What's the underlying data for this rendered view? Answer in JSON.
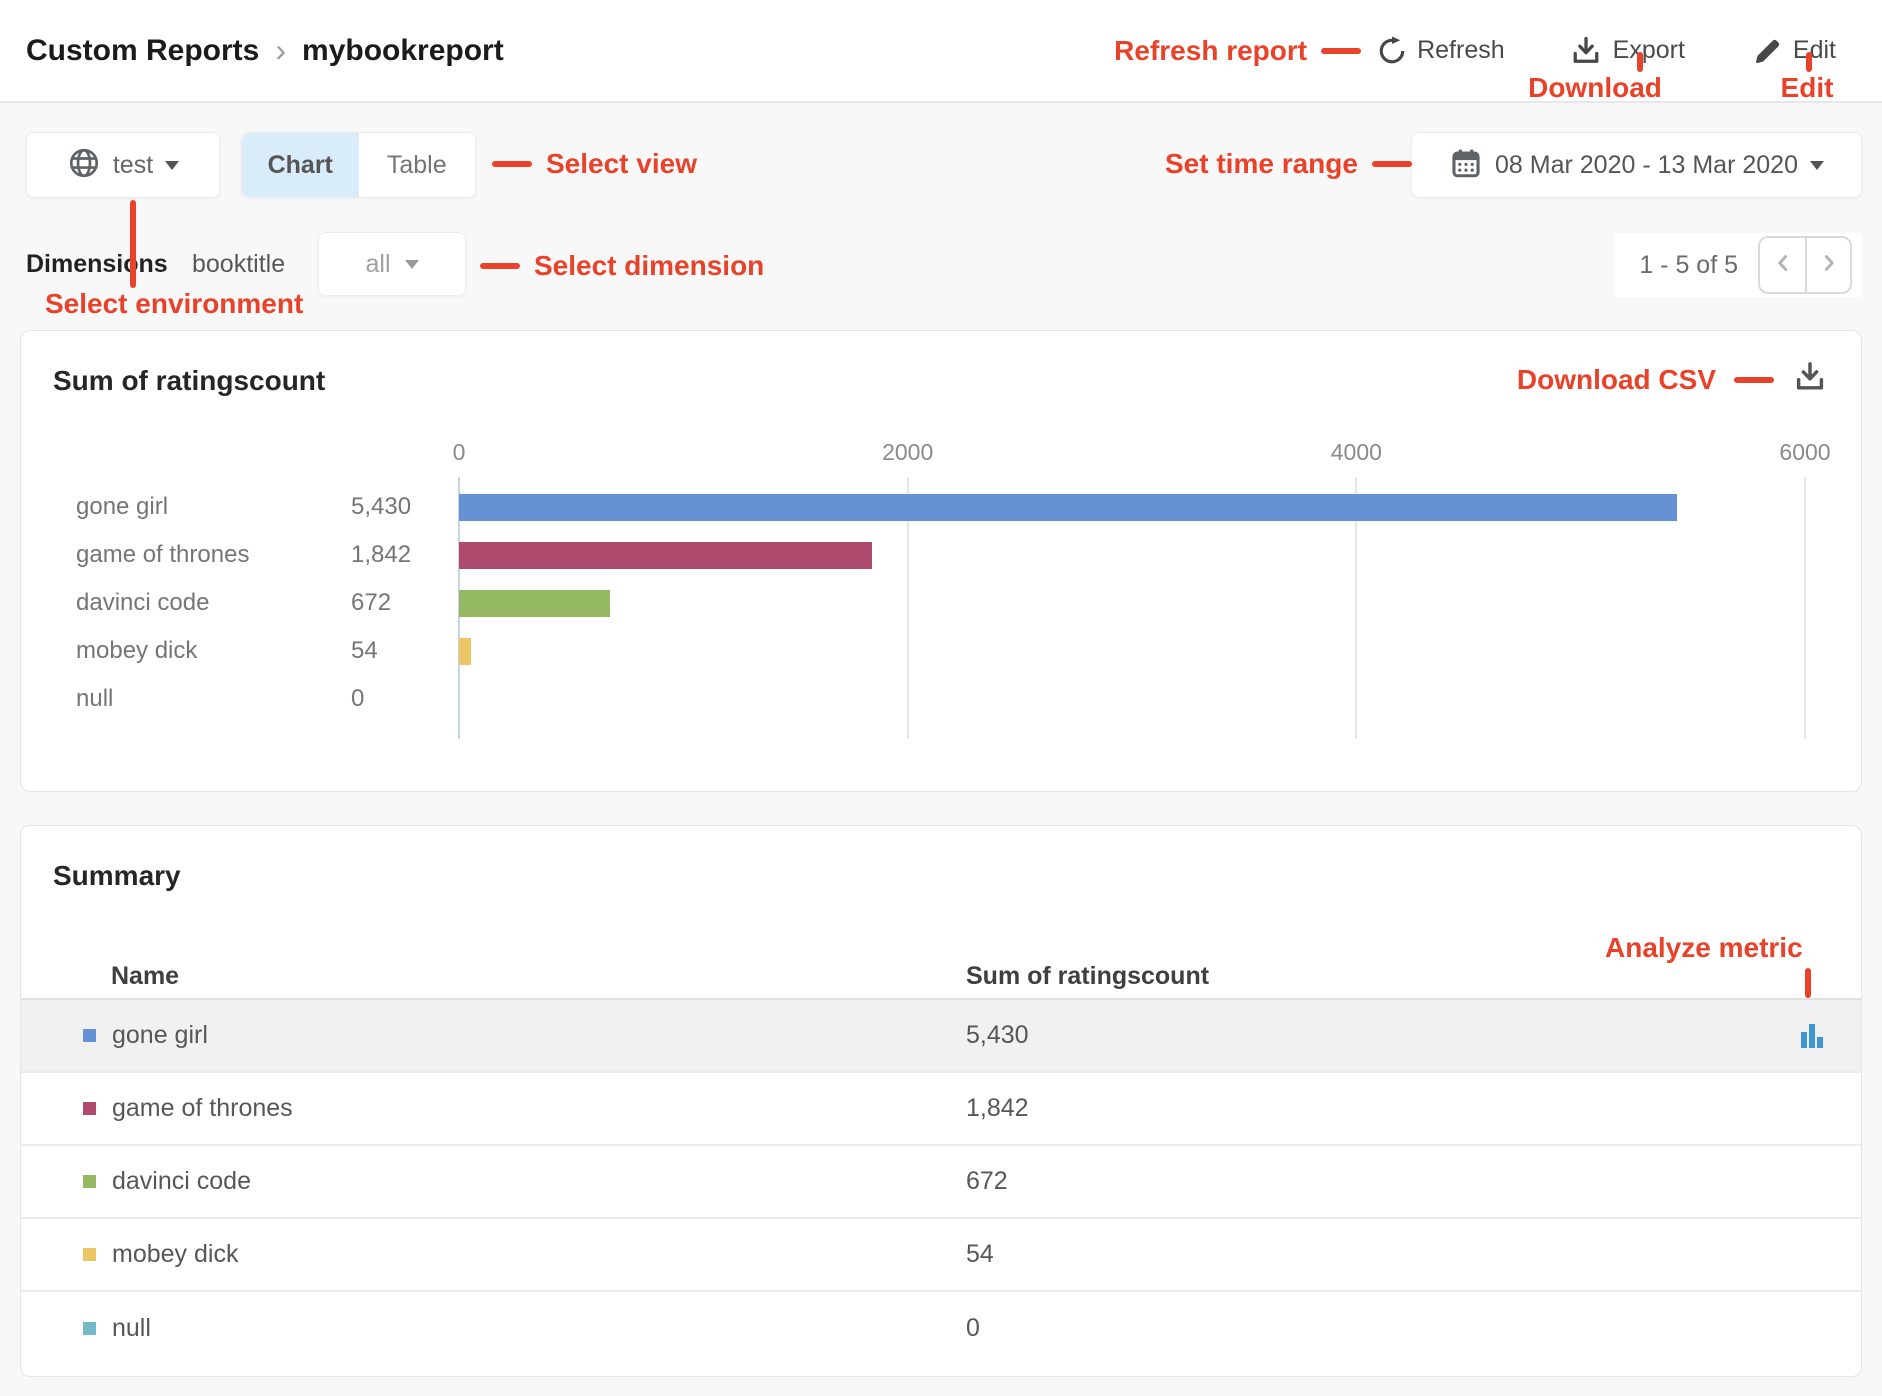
{
  "header": {
    "breadcrumb": {
      "section": "Custom Reports",
      "separator": "›",
      "page": "mybookreport"
    },
    "actions": {
      "refresh": "Refresh",
      "export": "Export",
      "edit": "Edit"
    }
  },
  "annotations": {
    "color": "#e8432a",
    "refresh_report": "Refresh report",
    "download": "Download",
    "edit": "Edit",
    "select_view": "Select view",
    "set_time_range": "Set time range",
    "select_dimension": "Select dimension",
    "select_environment": "Select environment",
    "download_csv": "Download CSV",
    "analyze_metric": "Analyze metric"
  },
  "toolbar": {
    "environment": {
      "value": "test"
    },
    "view_toggle": {
      "options": [
        "Chart",
        "Table"
      ],
      "selected": "Chart"
    },
    "date_range": "08 Mar 2020 - 13 Mar 2020"
  },
  "dimensions_bar": {
    "label": "Dimensions",
    "dimension": "booktitle",
    "filter_value": "all"
  },
  "pagination": {
    "range_text": "1 - 5 of 5"
  },
  "chart_panel": {
    "title": "Sum of ratingscount"
  },
  "chart_data": {
    "type": "bar",
    "orientation": "horizontal",
    "title": "Sum of ratingscount",
    "categories": [
      "gone girl",
      "game of thrones",
      "davinci code",
      "mobey dick",
      "null"
    ],
    "values": [
      5430,
      1842,
      672,
      54,
      0
    ],
    "value_labels": [
      "5,430",
      "1,842",
      "672",
      "54",
      "0"
    ],
    "colors": [
      "#6592d4",
      "#ad4a6e",
      "#94b962",
      "#edc564",
      "#74b9c7"
    ],
    "xlim": [
      0,
      6000
    ],
    "ticks": [
      0,
      2000,
      4000,
      6000
    ],
    "grid": true,
    "legend": false
  },
  "summary": {
    "title": "Summary",
    "columns": [
      "Name",
      "Sum of ratingscount"
    ],
    "rows": [
      {
        "name": "gone girl",
        "value": "5,430",
        "color": "#6592d4"
      },
      {
        "name": "game of thrones",
        "value": "1,842",
        "color": "#ad4a6e"
      },
      {
        "name": "davinci code",
        "value": "672",
        "color": "#94b962"
      },
      {
        "name": "mobey dick",
        "value": "54",
        "color": "#edc564"
      },
      {
        "name": "null",
        "value": "0",
        "color": "#74b9c7"
      }
    ],
    "highlighted_row": 0,
    "analyze_icon_row": 0
  }
}
